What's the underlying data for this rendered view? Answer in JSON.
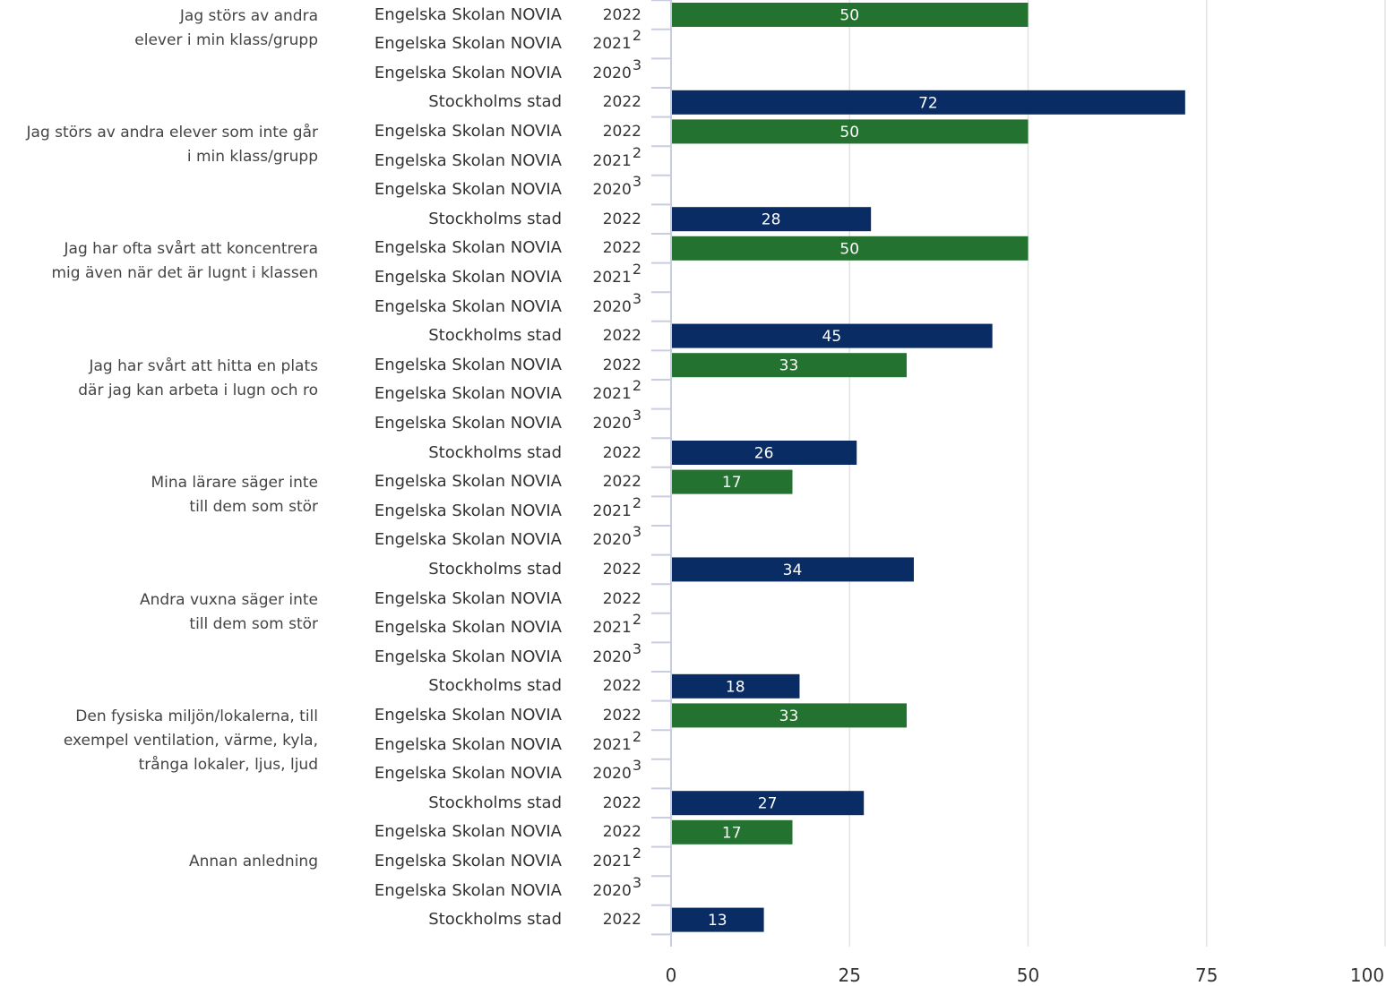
{
  "chart_data": {
    "type": "bar",
    "orientation": "horizontal",
    "xlim": [
      0,
      100
    ],
    "x_ticks": [
      "0",
      "25",
      "50",
      "75",
      "100"
    ],
    "grid": true,
    "colors": {
      "Engelska Skolan NOVIA": "#23722f",
      "Stockholms stad": "#0a2c64"
    },
    "groups": [
      {
        "label_lines": [
          "Jag störs av andra",
          "elever i min klass/grupp"
        ],
        "rows": [
          {
            "entity": "Engelska Skolan NOVIA",
            "year": "2022",
            "note": "",
            "value": 50
          },
          {
            "entity": "Engelska Skolan NOVIA",
            "year": "2021",
            "note": "2",
            "value": null
          },
          {
            "entity": "Engelska Skolan NOVIA",
            "year": "2020",
            "note": "3",
            "value": null
          },
          {
            "entity": "Stockholms stad",
            "year": "2022",
            "note": "",
            "value": 72
          }
        ]
      },
      {
        "label_lines": [
          "Jag störs av andra elever som inte går",
          "i min klass/grupp"
        ],
        "rows": [
          {
            "entity": "Engelska Skolan NOVIA",
            "year": "2022",
            "note": "",
            "value": 50
          },
          {
            "entity": "Engelska Skolan NOVIA",
            "year": "2021",
            "note": "2",
            "value": null
          },
          {
            "entity": "Engelska Skolan NOVIA",
            "year": "2020",
            "note": "3",
            "value": null
          },
          {
            "entity": "Stockholms stad",
            "year": "2022",
            "note": "",
            "value": 28
          }
        ]
      },
      {
        "label_lines": [
          "Jag har ofta svårt att koncentrera",
          "mig även när det är lugnt i klassen"
        ],
        "rows": [
          {
            "entity": "Engelska Skolan NOVIA",
            "year": "2022",
            "note": "",
            "value": 50
          },
          {
            "entity": "Engelska Skolan NOVIA",
            "year": "2021",
            "note": "2",
            "value": null
          },
          {
            "entity": "Engelska Skolan NOVIA",
            "year": "2020",
            "note": "3",
            "value": null
          },
          {
            "entity": "Stockholms stad",
            "year": "2022",
            "note": "",
            "value": 45
          }
        ]
      },
      {
        "label_lines": [
          "Jag har svårt att hitta en plats",
          "där jag kan arbeta i lugn och ro"
        ],
        "rows": [
          {
            "entity": "Engelska Skolan NOVIA",
            "year": "2022",
            "note": "",
            "value": 33
          },
          {
            "entity": "Engelska Skolan NOVIA",
            "year": "2021",
            "note": "2",
            "value": null
          },
          {
            "entity": "Engelska Skolan NOVIA",
            "year": "2020",
            "note": "3",
            "value": null
          },
          {
            "entity": "Stockholms stad",
            "year": "2022",
            "note": "",
            "value": 26
          }
        ]
      },
      {
        "label_lines": [
          "Mina lärare säger inte",
          "till dem som stör"
        ],
        "rows": [
          {
            "entity": "Engelska Skolan NOVIA",
            "year": "2022",
            "note": "",
            "value": 17
          },
          {
            "entity": "Engelska Skolan NOVIA",
            "year": "2021",
            "note": "2",
            "value": null
          },
          {
            "entity": "Engelska Skolan NOVIA",
            "year": "2020",
            "note": "3",
            "value": null
          },
          {
            "entity": "Stockholms stad",
            "year": "2022",
            "note": "",
            "value": 34
          }
        ]
      },
      {
        "label_lines": [
          "Andra vuxna säger inte",
          "till dem som stör"
        ],
        "rows": [
          {
            "entity": "Engelska Skolan NOVIA",
            "year": "2022",
            "note": "",
            "value": null
          },
          {
            "entity": "Engelska Skolan NOVIA",
            "year": "2021",
            "note": "2",
            "value": null
          },
          {
            "entity": "Engelska Skolan NOVIA",
            "year": "2020",
            "note": "3",
            "value": null
          },
          {
            "entity": "Stockholms stad",
            "year": "2022",
            "note": "",
            "value": 18
          }
        ]
      },
      {
        "label_lines": [
          "Den fysiska miljön/lokalerna, till",
          "exempel ventilation, värme, kyla,",
          "trånga lokaler, ljus, ljud"
        ],
        "rows": [
          {
            "entity": "Engelska Skolan NOVIA",
            "year": "2022",
            "note": "",
            "value": 33
          },
          {
            "entity": "Engelska Skolan NOVIA",
            "year": "2021",
            "note": "2",
            "value": null
          },
          {
            "entity": "Engelska Skolan NOVIA",
            "year": "2020",
            "note": "3",
            "value": null
          },
          {
            "entity": "Stockholms stad",
            "year": "2022",
            "note": "",
            "value": 27
          }
        ]
      },
      {
        "label_lines": [
          "Annan anledning"
        ],
        "rows": [
          {
            "entity": "Engelska Skolan NOVIA",
            "year": "2022",
            "note": "",
            "value": 17
          },
          {
            "entity": "Engelska Skolan NOVIA",
            "year": "2021",
            "note": "2",
            "value": null
          },
          {
            "entity": "Engelska Skolan NOVIA",
            "year": "2020",
            "note": "3",
            "value": null
          },
          {
            "entity": "Stockholms stad",
            "year": "2022",
            "note": "",
            "value": 13
          }
        ]
      }
    ]
  }
}
